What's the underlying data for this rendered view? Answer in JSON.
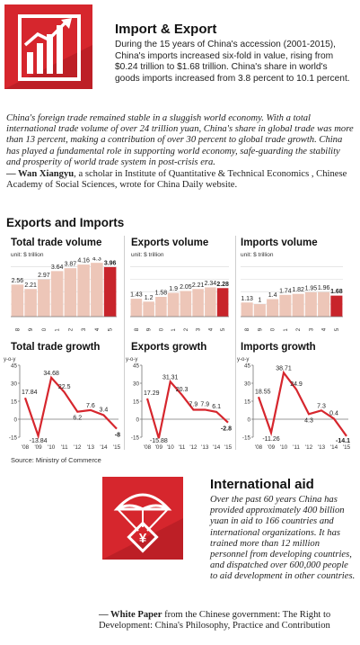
{
  "import_export": {
    "icon": "trade-chart-icon",
    "title": "Import & Export",
    "body": "During the 15 years of China's accession (2001-2015), China's imports increased six-fold in value, rising from $0.24 trillion to $1.68 trillion. China's share in world's goods imports increased from 3.8 percent to 10.1 percent."
  },
  "quote": {
    "text": "China's foreign trade remained stable in a sluggish world economy. With a total international trade volume of over 24 trillion yuan, China's share in global trade was more than 13 percent, making a contribution of over 30 percent to global trade growth. China has played a fundamental role in supporting world economy, safe-guarding the stability and prosperity of world trade system in post-crisis era.",
    "attribution_name": "— Wan Xiangyu",
    "attribution_rest": ", a scholar in Institute of Quantitative & Technical Economics , Chinese Academy of Social Sciences, wrote for China Daily website."
  },
  "section_title": "Exports and Imports",
  "source": "Source: Ministry of Commerce",
  "colors": {
    "accent": "#d6262d",
    "bar": "#edc6b8",
    "highlight_bar": "#c8242b",
    "line": "#d6262d",
    "axis": "#777777"
  },
  "chart_data": [
    {
      "type": "bar",
      "title": "Total trade volume",
      "unit": "unit: $ trillion",
      "categories": [
        "'08",
        "'09",
        "'10",
        "'11",
        "'12",
        "'13",
        "'14",
        "'15"
      ],
      "values": [
        2.56,
        2.21,
        2.97,
        3.64,
        3.87,
        4.16,
        4.3,
        3.96
      ],
      "labels": [
        "2.56",
        "2.21",
        "2.97",
        "3.64",
        "3.87",
        "4.16",
        "4.3",
        "3.96"
      ],
      "ylim": [
        0,
        4.6
      ],
      "highlight_index": 7
    },
    {
      "type": "bar",
      "title": "Exports volume",
      "unit": "unit: $ trillion",
      "categories": [
        "'08",
        "'09",
        "'10",
        "'11",
        "'12",
        "'13",
        "'14",
        "'15"
      ],
      "values": [
        1.43,
        1.2,
        1.58,
        1.9,
        2.05,
        2.21,
        2.34,
        2.28
      ],
      "labels": [
        "1.43",
        "1.2",
        "1.58",
        "1.9",
        "2.05",
        "2.21",
        "2.34",
        "2.28"
      ],
      "ylim": [
        0,
        4.6
      ],
      "highlight_index": 7
    },
    {
      "type": "bar",
      "title": "Imports volume",
      "unit": "unit: $ trillion",
      "categories": [
        "'08",
        "'09",
        "'10",
        "'11",
        "'12",
        "'13",
        "'14",
        "'15"
      ],
      "values": [
        1.13,
        1.0,
        1.4,
        1.74,
        1.82,
        1.95,
        1.96,
        1.68
      ],
      "labels": [
        "1.13",
        "1",
        "1.4",
        "1.74",
        "1.82",
        "1.95",
        "1.96",
        "1.68"
      ],
      "ylim": [
        0,
        4.6
      ],
      "highlight_index": 7
    },
    {
      "type": "line",
      "title": "Total trade growth",
      "ylabel": "y-o-y",
      "categories": [
        "'08",
        "'09",
        "'10",
        "'11",
        "'12",
        "'13",
        "'14",
        "'15"
      ],
      "values": [
        17.84,
        -13.84,
        34.68,
        22.5,
        6.2,
        7.6,
        3.4,
        -8
      ],
      "labels": [
        "17.84",
        "-13.84",
        "34.68",
        "22.5",
        "6.2",
        "7.6",
        "3.4",
        "-8"
      ],
      "ylim": [
        -15,
        45
      ],
      "yticks": [
        45,
        30,
        15,
        0,
        -15
      ]
    },
    {
      "type": "line",
      "title": "Exports growth",
      "ylabel": "y-o-y",
      "categories": [
        "'08",
        "'09",
        "'10",
        "'11",
        "'12",
        "'13",
        "'14",
        "'15"
      ],
      "values": [
        17.29,
        -15.88,
        31.31,
        20.3,
        7.9,
        7.9,
        6.1,
        -2.8
      ],
      "labels": [
        "17.29",
        "-15.88",
        "31.31",
        "20.3",
        "7.9",
        "7.9",
        "6.1",
        "-2.8"
      ],
      "ylim": [
        -15,
        45
      ],
      "yticks": [
        45,
        30,
        15,
        0,
        -15
      ]
    },
    {
      "type": "line",
      "title": "Imports growth",
      "ylabel": "y-o-y",
      "categories": [
        "'08",
        "'09",
        "'10",
        "'11",
        "'12",
        "'13",
        "'14",
        "'15"
      ],
      "values": [
        18.55,
        -11.26,
        38.71,
        24.9,
        4.3,
        7.3,
        0.4,
        -14.1
      ],
      "labels": [
        "18.55",
        "-11.26",
        "38.71",
        "24.9",
        "4.3",
        "7.3",
        "0.4",
        "-14.1"
      ],
      "ylim": [
        -15,
        45
      ],
      "yticks": [
        45,
        30,
        15,
        0,
        -15
      ]
    }
  ],
  "international_aid": {
    "icon": "aid-parachute-icon",
    "icon_glyph": "¥",
    "title": "International aid",
    "body": "Over the past 60 years China has provided approximately 400 billion yuan in aid to 166 countries and international organizations. It has trained more than 12 million personnel from developing countries, and dispatched over 600,000 people to aid development in other countries.",
    "attribution_name": "— White Paper",
    "attribution_rest": " from the Chinese government: The Right to Development: China's Philosophy, Practice and Contribution"
  }
}
